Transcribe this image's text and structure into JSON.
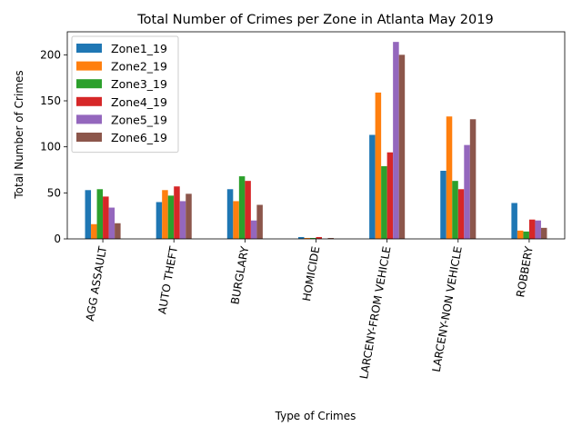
{
  "chart_data": {
    "type": "bar",
    "title": "Total Number of Crimes per Zone in Atlanta May 2019",
    "xlabel": "Type of Crimes",
    "ylabel": "Total Number of Crimes",
    "ylim": [
      0,
      225
    ],
    "yticks": [
      0,
      50,
      100,
      150,
      200
    ],
    "grid": false,
    "legend_position": "top-left",
    "categories": [
      "AGG ASSAULT",
      "AUTO THEFT",
      "BURGLARY",
      "HOMICIDE",
      "LARCENY-FROM VEHICLE",
      "LARCENY-NON VEHICLE",
      "ROBBERY"
    ],
    "series": [
      {
        "name": "Zone1_19",
        "color": "#1f77b4",
        "values": [
          53,
          40,
          54,
          2,
          113,
          74,
          39
        ]
      },
      {
        "name": "Zone2_19",
        "color": "#ff7f0e",
        "values": [
          16,
          53,
          41,
          1,
          159,
          133,
          9
        ]
      },
      {
        "name": "Zone3_19",
        "color": "#2ca02c",
        "values": [
          54,
          47,
          68,
          1,
          79,
          63,
          8
        ]
      },
      {
        "name": "Zone4_19",
        "color": "#d62728",
        "values": [
          46,
          57,
          63,
          2,
          94,
          54,
          21
        ]
      },
      {
        "name": "Zone5_19",
        "color": "#9467bd",
        "values": [
          34,
          41,
          20,
          0,
          214,
          102,
          20
        ]
      },
      {
        "name": "Zone6_19",
        "color": "#8c564b",
        "values": [
          17,
          49,
          37,
          1,
          200,
          130,
          12
        ]
      }
    ]
  }
}
